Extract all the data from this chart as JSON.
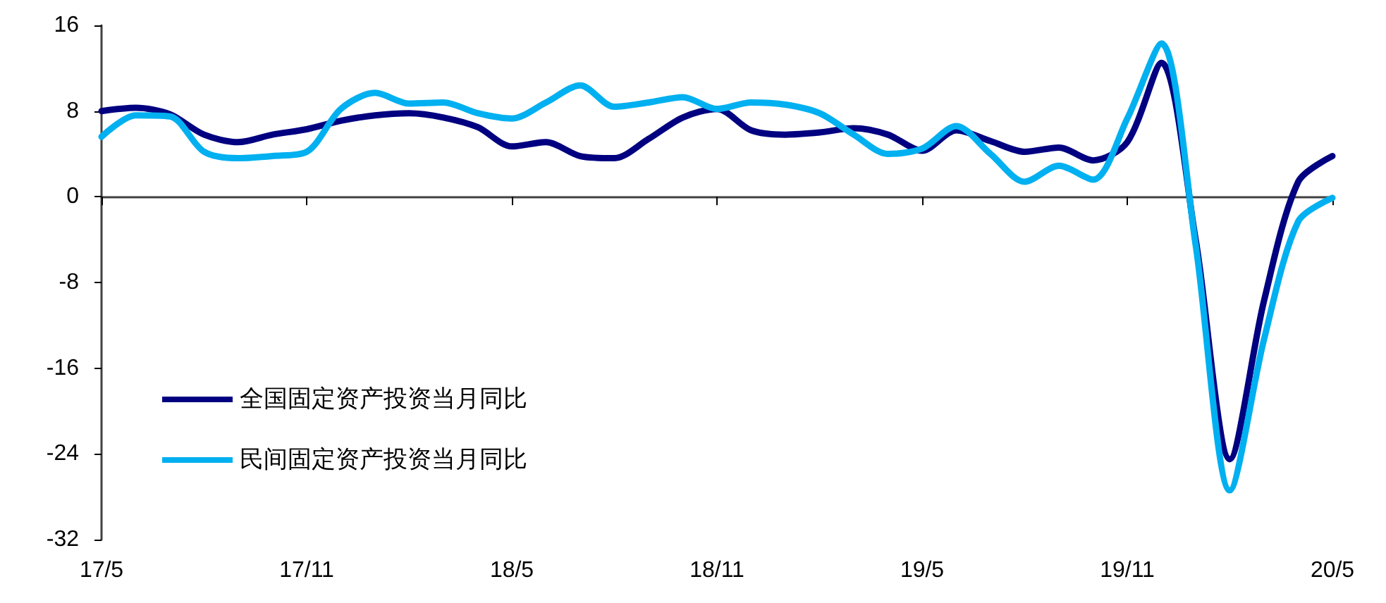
{
  "chart_data": {
    "type": "line",
    "categories": [
      "17/5",
      null,
      null,
      null,
      null,
      null,
      "17/11",
      null,
      null,
      null,
      null,
      null,
      "18/5",
      null,
      null,
      null,
      null,
      null,
      "18/11",
      null,
      null,
      null,
      null,
      null,
      "19/5",
      null,
      null,
      null,
      null,
      null,
      "19/11",
      null,
      null,
      null,
      null,
      null,
      "20/5"
    ],
    "series": [
      {
        "name": "全国固定资产投资当月同比",
        "color": "#000080",
        "values": [
          8.0,
          8.3,
          7.7,
          5.8,
          5.1,
          5.8,
          6.3,
          7.1,
          7.6,
          7.8,
          7.4,
          6.5,
          4.7,
          5.1,
          3.8,
          3.6,
          5.4,
          7.4,
          8.2,
          6.2,
          5.8,
          6.0,
          6.4,
          5.8,
          4.3,
          6.2,
          5.2,
          4.2,
          4.6,
          3.4,
          5.1,
          12.5,
          -4.0,
          -24.5,
          -9.7,
          1.4,
          3.8
        ]
      },
      {
        "name": "民间固定资产投资当月同比",
        "color": "#00b0f0",
        "values": [
          5.6,
          7.6,
          7.5,
          4.2,
          3.6,
          3.8,
          4.2,
          8.2,
          9.7,
          8.7,
          8.8,
          7.8,
          7.3,
          8.8,
          10.4,
          8.4,
          8.8,
          9.3,
          8.2,
          8.8,
          8.6,
          7.8,
          5.8,
          4.0,
          4.5,
          6.6,
          4.0,
          1.4,
          2.9,
          1.6,
          7.3,
          14.3,
          -4.5,
          -27.4,
          -13.3,
          -2.3,
          -0.1
        ]
      }
    ],
    "ylim": [
      -32,
      16
    ],
    "yticks": [
      -32,
      -24,
      -16,
      -8,
      0,
      8,
      16
    ],
    "legend": "bottom left",
    "marker": "none",
    "line_style": "solid"
  }
}
